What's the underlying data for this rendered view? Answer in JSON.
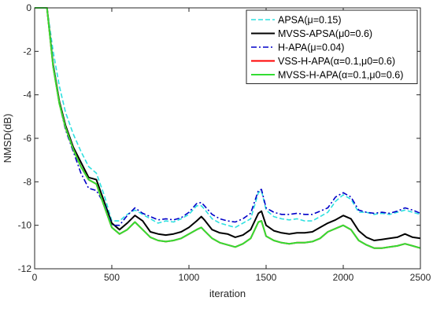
{
  "chart_data": {
    "type": "line",
    "title": "",
    "xlabel": "iteration",
    "ylabel": "NMSD(dB)",
    "xlim": [
      0,
      2500
    ],
    "ylim": [
      -12,
      0
    ],
    "xticks": [
      0,
      500,
      1000,
      1500,
      2000,
      2500
    ],
    "yticks": [
      0,
      -2,
      -4,
      -6,
      -8,
      -10,
      -12
    ],
    "xtick_labels": [
      "0",
      "500",
      "1000",
      "1500",
      "2000",
      "2500"
    ],
    "ytick_labels": [
      "0",
      "-2",
      "-4",
      "-6",
      "-8",
      "-10",
      "-12"
    ],
    "grid": false,
    "legend_position": "top-right",
    "series": [
      {
        "name": "APSA(μ=0.15)",
        "color": "#2ee0e0",
        "style": "dashed",
        "x": [
          0,
          80,
          120,
          160,
          200,
          250,
          300,
          350,
          400,
          450,
          500,
          550,
          600,
          650,
          700,
          750,
          800,
          850,
          900,
          950,
          1000,
          1050,
          1080,
          1100,
          1150,
          1200,
          1250,
          1300,
          1350,
          1400,
          1450,
          1470,
          1500,
          1550,
          1600,
          1650,
          1700,
          1750,
          1800,
          1850,
          1900,
          1950,
          2000,
          2050,
          2100,
          2150,
          2200,
          2250,
          2300,
          2350,
          2400,
          2450,
          2500
        ],
        "y": [
          0,
          0,
          -2.0,
          -3.6,
          -4.8,
          -5.8,
          -6.6,
          -7.3,
          -7.6,
          -8.6,
          -9.8,
          -9.8,
          -9.5,
          -9.3,
          -9.5,
          -9.7,
          -9.9,
          -9.8,
          -9.85,
          -9.7,
          -9.5,
          -9.1,
          -9.1,
          -9.25,
          -9.7,
          -9.9,
          -10.0,
          -10.1,
          -9.9,
          -9.7,
          -8.5,
          -8.4,
          -9.3,
          -9.6,
          -9.7,
          -9.75,
          -9.7,
          -9.8,
          -9.8,
          -9.6,
          -9.4,
          -8.9,
          -8.6,
          -8.8,
          -9.4,
          -9.4,
          -9.5,
          -9.45,
          -9.5,
          -9.4,
          -9.3,
          -9.4,
          -9.5
        ]
      },
      {
        "name": "MVSS-APSA(μ0=0.6)",
        "color": "#000000",
        "style": "solid",
        "x": [
          0,
          80,
          120,
          160,
          200,
          250,
          300,
          350,
          400,
          450,
          500,
          550,
          600,
          650,
          700,
          750,
          800,
          850,
          900,
          950,
          1000,
          1050,
          1080,
          1100,
          1150,
          1200,
          1250,
          1300,
          1350,
          1400,
          1450,
          1470,
          1500,
          1550,
          1600,
          1650,
          1700,
          1750,
          1800,
          1850,
          1900,
          1950,
          2000,
          2050,
          2100,
          2150,
          2200,
          2250,
          2300,
          2350,
          2400,
          2450,
          2500
        ],
        "y": [
          0,
          0,
          -2.6,
          -4.3,
          -5.4,
          -6.4,
          -7.1,
          -7.8,
          -7.9,
          -8.9,
          -9.9,
          -10.2,
          -9.9,
          -9.55,
          -9.8,
          -10.3,
          -10.4,
          -10.45,
          -10.4,
          -10.3,
          -10.1,
          -9.8,
          -9.6,
          -9.75,
          -10.2,
          -10.35,
          -10.4,
          -10.55,
          -10.45,
          -10.2,
          -9.45,
          -9.35,
          -10.0,
          -10.25,
          -10.35,
          -10.4,
          -10.35,
          -10.35,
          -10.3,
          -10.1,
          -9.9,
          -9.75,
          -9.55,
          -9.7,
          -10.25,
          -10.55,
          -10.7,
          -10.65,
          -10.6,
          -10.55,
          -10.4,
          -10.55,
          -10.6
        ]
      },
      {
        "name": "H-APA(μ=0.04)",
        "color": "#0000c8",
        "style": "dashdot",
        "x": [
          0,
          80,
          120,
          160,
          200,
          250,
          300,
          350,
          400,
          450,
          500,
          550,
          600,
          650,
          700,
          750,
          800,
          850,
          900,
          950,
          1000,
          1050,
          1080,
          1100,
          1150,
          1200,
          1250,
          1300,
          1350,
          1400,
          1450,
          1470,
          1500,
          1550,
          1600,
          1650,
          1700,
          1750,
          1800,
          1850,
          1900,
          1950,
          2000,
          2050,
          2100,
          2150,
          2200,
          2250,
          2300,
          2350,
          2400,
          2450,
          2500
        ],
        "y": [
          0,
          0,
          -2.6,
          -4.4,
          -5.6,
          -6.6,
          -7.6,
          -8.3,
          -8.4,
          -9.0,
          -10.0,
          -10.0,
          -9.55,
          -9.2,
          -9.45,
          -9.6,
          -9.75,
          -9.7,
          -9.75,
          -9.65,
          -9.4,
          -9.0,
          -8.95,
          -9.1,
          -9.5,
          -9.7,
          -9.8,
          -9.85,
          -9.7,
          -9.45,
          -8.4,
          -8.35,
          -9.2,
          -9.4,
          -9.5,
          -9.5,
          -9.45,
          -9.5,
          -9.5,
          -9.35,
          -9.2,
          -8.7,
          -8.5,
          -8.7,
          -9.3,
          -9.4,
          -9.45,
          -9.4,
          -9.45,
          -9.35,
          -9.2,
          -9.3,
          -9.45
        ]
      },
      {
        "name": "VSS-H-APA(α=0.1,μ0=0.6)",
        "color": "#ff0000",
        "style": "solid",
        "x": [
          0,
          80,
          120,
          160,
          200,
          250,
          300,
          350,
          400,
          450,
          500,
          550,
          600,
          650,
          700,
          750,
          800,
          850,
          900,
          950,
          1000,
          1050,
          1080,
          1100,
          1150,
          1200,
          1250,
          1300,
          1350,
          1400,
          1450,
          1470,
          1500,
          1550,
          1600,
          1650,
          1700,
          1750,
          1800,
          1850,
          1900,
          1950,
          2000,
          2050,
          2100,
          2150,
          2200,
          2250,
          2300,
          2350,
          2400,
          2450,
          2500
        ],
        "y": [
          0,
          0,
          -2.7,
          -4.4,
          -5.5,
          -6.5,
          -7.3,
          -7.9,
          -8.1,
          -9.1,
          -10.1,
          -10.4,
          -10.2,
          -9.85,
          -10.2,
          -10.55,
          -10.7,
          -10.75,
          -10.7,
          -10.6,
          -10.4,
          -10.2,
          -10.1,
          -10.25,
          -10.6,
          -10.8,
          -10.9,
          -11.0,
          -10.85,
          -10.6,
          -9.85,
          -9.8,
          -10.5,
          -10.7,
          -10.8,
          -10.85,
          -10.8,
          -10.8,
          -10.75,
          -10.6,
          -10.3,
          -10.15,
          -10.0,
          -10.2,
          -10.7,
          -10.9,
          -11.05,
          -11.05,
          -11.0,
          -10.95,
          -10.85,
          -10.95,
          -11.05
        ]
      },
      {
        "name": "MVSS-H-APA(α=0.1,μ0=0.6)",
        "color": "#33dd33",
        "style": "solid",
        "x": [
          0,
          80,
          120,
          160,
          200,
          250,
          300,
          350,
          400,
          450,
          500,
          550,
          600,
          650,
          700,
          750,
          800,
          850,
          900,
          950,
          1000,
          1050,
          1080,
          1100,
          1150,
          1200,
          1250,
          1300,
          1350,
          1400,
          1450,
          1470,
          1500,
          1550,
          1600,
          1650,
          1700,
          1750,
          1800,
          1850,
          1900,
          1950,
          2000,
          2050,
          2100,
          2150,
          2200,
          2250,
          2300,
          2350,
          2400,
          2450,
          2500
        ],
        "y": [
          0,
          0,
          -2.7,
          -4.4,
          -5.5,
          -6.5,
          -7.3,
          -7.9,
          -8.1,
          -9.1,
          -10.1,
          -10.4,
          -10.2,
          -9.85,
          -10.2,
          -10.55,
          -10.7,
          -10.75,
          -10.7,
          -10.6,
          -10.4,
          -10.2,
          -10.1,
          -10.25,
          -10.6,
          -10.8,
          -10.9,
          -11.0,
          -10.85,
          -10.6,
          -9.85,
          -9.8,
          -10.5,
          -10.7,
          -10.8,
          -10.85,
          -10.8,
          -10.8,
          -10.75,
          -10.6,
          -10.3,
          -10.15,
          -10.0,
          -10.2,
          -10.7,
          -10.9,
          -11.05,
          -11.05,
          -11.0,
          -10.95,
          -10.85,
          -10.95,
          -11.05
        ]
      }
    ]
  }
}
